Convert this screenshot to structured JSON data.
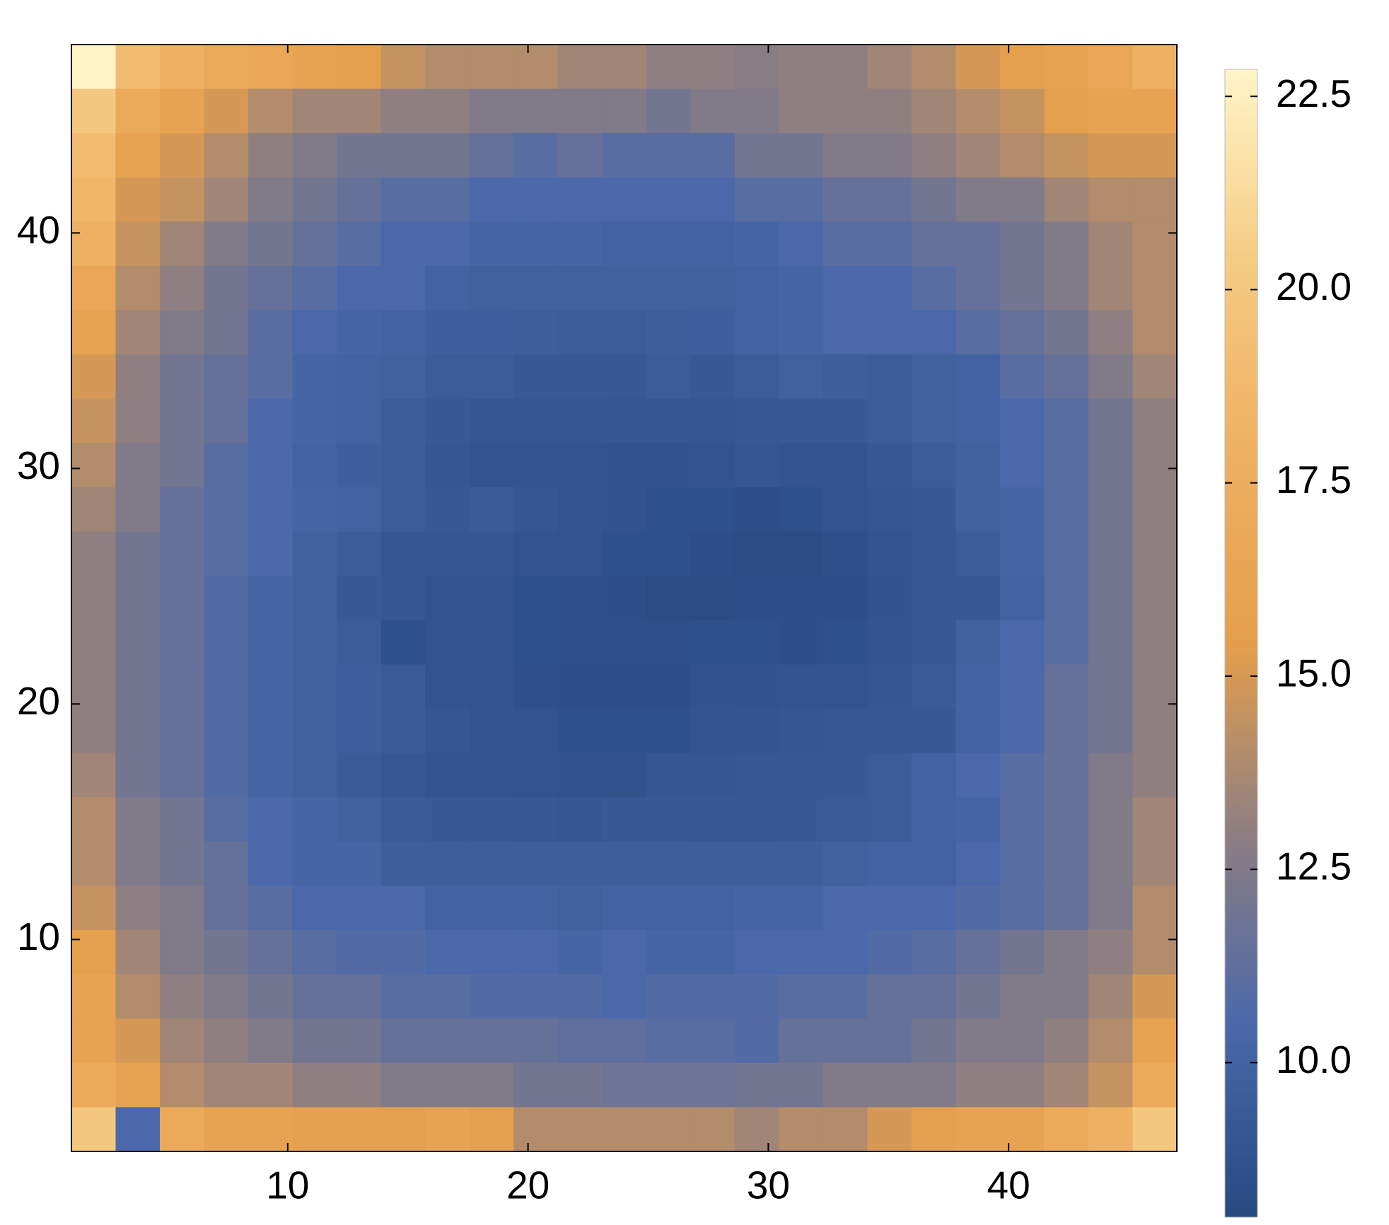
{
  "chart_data": {
    "type": "heatmap",
    "xlim": [
      1,
      47
    ],
    "ylim": [
      1,
      48
    ],
    "xticks": [
      10,
      20,
      30,
      40
    ],
    "yticks": [
      10,
      20,
      30,
      40
    ],
    "zlim": [
      8,
      22.85
    ],
    "zticks": [
      {
        "value": 10,
        "label": "10.0"
      },
      12.5,
      {
        "value": 15,
        "label": "15.0"
      },
      17.5,
      {
        "value": 20,
        "label": "20.0"
      },
      22.5
    ],
    "colormap": [
      "#27497f",
      "#4a68aa",
      "#8d7e82",
      "#e59f4c",
      "#eeb062",
      "#f5cb83",
      "#fff5c8"
    ],
    "z": [
      [
        22.8,
        19,
        18,
        17,
        16.5,
        16,
        15.5,
        14.5,
        14,
        14,
        14,
        13.5,
        13.5,
        13,
        13,
        12.8,
        13,
        13,
        13.5,
        14,
        15,
        15.5,
        16,
        16.5,
        18
      ],
      [
        20,
        17,
        16,
        15,
        14,
        13.5,
        13.5,
        13,
        13,
        12.5,
        12.5,
        12.5,
        12.5,
        12,
        12.5,
        12.5,
        13,
        13,
        13,
        13.5,
        14,
        14.5,
        15.5,
        16,
        16
      ],
      [
        19,
        16,
        15,
        14,
        13,
        12.5,
        12,
        12,
        12,
        11.5,
        11,
        11.5,
        11,
        11,
        11,
        12,
        12,
        12.5,
        12.5,
        13,
        13.5,
        14,
        14.5,
        15,
        15
      ],
      [
        18.5,
        15,
        14.5,
        13.5,
        12.5,
        12,
        11.5,
        11,
        11,
        10.5,
        10.5,
        10.5,
        10.5,
        10.5,
        10.5,
        11,
        11,
        11.5,
        11.5,
        12,
        12.5,
        12.5,
        13.5,
        14,
        14
      ],
      [
        18,
        14.5,
        13.5,
        12.5,
        12,
        11.5,
        11,
        10.5,
        10.5,
        10.2,
        10.2,
        10.2,
        10,
        10,
        10,
        10.2,
        10.5,
        11,
        11,
        11.5,
        11.5,
        12,
        12.5,
        13.5,
        14
      ],
      [
        16.5,
        14,
        13,
        12,
        11.5,
        11,
        10.5,
        10.5,
        10,
        9.8,
        9.8,
        9.8,
        9.8,
        9.8,
        9.8,
        10,
        10.2,
        10.5,
        10.5,
        11,
        11.5,
        12,
        12.5,
        13.5,
        14
      ],
      [
        16,
        13.5,
        12.5,
        12,
        11,
        10.5,
        10.2,
        10,
        9.7,
        9.7,
        9.6,
        9.5,
        9.5,
        9.6,
        9.7,
        10,
        10.2,
        10.5,
        10.5,
        10.5,
        11,
        11.5,
        12,
        13,
        14
      ],
      [
        15,
        13,
        12,
        11.5,
        11,
        10.2,
        10,
        9.8,
        9.5,
        9.5,
        9.3,
        9.3,
        9.2,
        9.5,
        9.3,
        9.5,
        9.8,
        9.6,
        9.5,
        9.8,
        10,
        11,
        11.5,
        12.5,
        13.5
      ],
      [
        14.5,
        13,
        12,
        11.5,
        10.5,
        10.2,
        10,
        9.5,
        9.3,
        9,
        9,
        9,
        9,
        9,
        9,
        9.2,
        9.3,
        9.3,
        9.5,
        9.8,
        10,
        10.5,
        11,
        12,
        13
      ],
      [
        14,
        12.5,
        12,
        11,
        10.5,
        10,
        9.7,
        9.5,
        9,
        8.8,
        8.8,
        8.8,
        8.7,
        8.7,
        8.8,
        9,
        8.9,
        8.8,
        9.2,
        9.5,
        9.8,
        10.5,
        11,
        12,
        13
      ],
      [
        13.5,
        12.5,
        11.5,
        11,
        10.5,
        10.2,
        10,
        9.5,
        9.2,
        9.4,
        9,
        8.8,
        8.7,
        8.6,
        8.6,
        8.4,
        8.6,
        8.8,
        9,
        9.3,
        9.8,
        10.2,
        11,
        12,
        13
      ],
      [
        13,
        12,
        11.5,
        11,
        10.5,
        9.8,
        9.5,
        9,
        9,
        9,
        8.8,
        8.8,
        8.6,
        8.6,
        8.4,
        8.3,
        8.3,
        8.5,
        8.8,
        9.2,
        9.5,
        10.2,
        11,
        12,
        13
      ],
      [
        13,
        12,
        11.5,
        10.8,
        10.2,
        9.8,
        9.3,
        9,
        8.8,
        8.8,
        8.6,
        8.5,
        8.4,
        8.3,
        8.3,
        8.4,
        8.4,
        8.4,
        8.7,
        9.2,
        9.3,
        10,
        11,
        12,
        13
      ],
      [
        13,
        12,
        11.5,
        10.8,
        10.2,
        9.8,
        9.5,
        8.6,
        8.8,
        8.8,
        8.6,
        8.5,
        8.5,
        8.5,
        8.6,
        8.6,
        8.4,
        8.6,
        8.8,
        9.2,
        9.8,
        10.5,
        11,
        12,
        13
      ],
      [
        13,
        12,
        11.5,
        10.8,
        10.2,
        9.8,
        9.7,
        9.4,
        8.8,
        8.8,
        8.5,
        8.4,
        8.4,
        8.4,
        8.7,
        8.7,
        8.8,
        8.8,
        9,
        9.4,
        10,
        10.5,
        11.5,
        12,
        13
      ],
      [
        13,
        12,
        11.5,
        10.8,
        10.2,
        9.8,
        9.7,
        9.4,
        9,
        8.8,
        8.8,
        8.6,
        8.6,
        8.6,
        8.8,
        8.9,
        9,
        9.1,
        9.1,
        9.2,
        10,
        10.5,
        11.5,
        12,
        13
      ],
      [
        13.5,
        12,
        11.5,
        10.8,
        10.2,
        9.8,
        9.4,
        9.1,
        8.9,
        8.8,
        8.8,
        8.7,
        8.7,
        9,
        9,
        9.1,
        9.2,
        9.3,
        9.5,
        10,
        10.5,
        11,
        11.5,
        12.5,
        13
      ],
      [
        14,
        12.5,
        12,
        11,
        10.5,
        10.2,
        9.8,
        9.4,
        9.3,
        9.3,
        9.2,
        9,
        9.3,
        9.3,
        9.2,
        9.2,
        9.3,
        9.4,
        9.5,
        10,
        10.2,
        11,
        11.5,
        12.5,
        13.5
      ],
      [
        14,
        12.5,
        12,
        11.5,
        10.5,
        10.2,
        10.2,
        9.6,
        9.6,
        9.6,
        9.6,
        9.6,
        9.6,
        9.6,
        9.6,
        9.6,
        9.6,
        9.8,
        10,
        10,
        10.5,
        11,
        11.5,
        12.5,
        13.5
      ],
      [
        14.5,
        13,
        12.5,
        11.5,
        11,
        10.5,
        10.5,
        10.5,
        10,
        10,
        10,
        9.8,
        10,
        10,
        10,
        10.2,
        10.2,
        10.5,
        10.5,
        10.5,
        10.8,
        11,
        11.5,
        12.5,
        14
      ],
      [
        15.5,
        13.5,
        12.5,
        12,
        11.5,
        11,
        10.8,
        10.8,
        10.5,
        10.5,
        10.5,
        10.2,
        10.5,
        10.2,
        10.2,
        10.5,
        10.5,
        10.5,
        10.8,
        11,
        11.5,
        12,
        12.5,
        13,
        14
      ],
      [
        16,
        14,
        13,
        12.5,
        12,
        11.5,
        11.5,
        11,
        11,
        10.8,
        10.8,
        10.8,
        10.5,
        10.8,
        10.8,
        10.8,
        11,
        11,
        11.5,
        11.5,
        12,
        12.5,
        12.5,
        13.5,
        15
      ],
      [
        16,
        15,
        13.5,
        13,
        12.5,
        12,
        12,
        11.5,
        11.5,
        11.5,
        11.5,
        11.2,
        11.2,
        11,
        11,
        10.8,
        11.5,
        11.5,
        11.5,
        12,
        12.5,
        12.5,
        13,
        14,
        16
      ],
      [
        17,
        16,
        14,
        13.5,
        13.5,
        13,
        13,
        12.5,
        12.5,
        12.5,
        12,
        12,
        11.8,
        11.8,
        11.8,
        12,
        12,
        12.5,
        12.5,
        12.5,
        13,
        13,
        13.5,
        14.5,
        17
      ],
      [
        20,
        10.5,
        17,
        16,
        16,
        15.5,
        15.5,
        15.5,
        16,
        15.5,
        14,
        14,
        14,
        14,
        14,
        13.5,
        14,
        14,
        15,
        15.5,
        16,
        16,
        17,
        18,
        20
      ]
    ]
  }
}
